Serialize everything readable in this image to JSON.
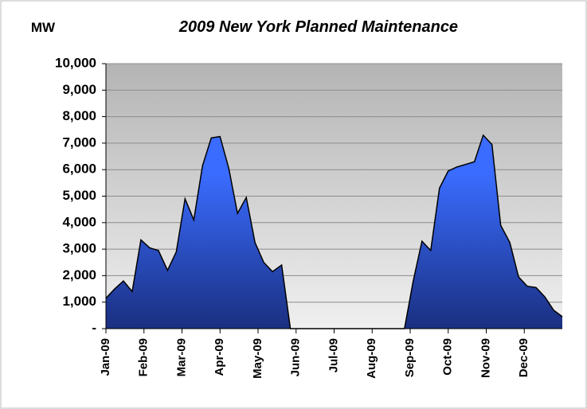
{
  "chart_data": {
    "type": "area",
    "title": "2009 New York Planned Maintenance",
    "y_label": "MW",
    "color": "#3366ff",
    "grid": true,
    "xlim": [
      0,
      12
    ],
    "xticks": [
      {
        "value": 0,
        "label": "Jan-09"
      },
      {
        "value": 1,
        "label": "Feb-09"
      },
      {
        "value": 2,
        "label": "Mar-09"
      },
      {
        "value": 3,
        "label": "Apr-09"
      },
      {
        "value": 4,
        "label": "May-09"
      },
      {
        "value": 5,
        "label": "Jun-09"
      },
      {
        "value": 6,
        "label": "Jul-09"
      },
      {
        "value": 7,
        "label": "Aug-09"
      },
      {
        "value": 8,
        "label": "Sep-09"
      },
      {
        "value": 9,
        "label": "Oct-09"
      },
      {
        "value": 10,
        "label": "Nov-09"
      },
      {
        "value": 11,
        "label": "Dec-09"
      }
    ],
    "ylim": [
      0,
      10000
    ],
    "yticks": [
      {
        "value": 0,
        "label": "-"
      },
      {
        "value": 1000,
        "label": "1,000"
      },
      {
        "value": 2000,
        "label": "2,000"
      },
      {
        "value": 3000,
        "label": "3,000"
      },
      {
        "value": 4000,
        "label": "4,000"
      },
      {
        "value": 5000,
        "label": "5,000"
      },
      {
        "value": 6000,
        "label": "6,000"
      },
      {
        "value": 7000,
        "label": "7,000"
      },
      {
        "value": 8000,
        "label": "8,000"
      },
      {
        "value": 9000,
        "label": "9,000"
      },
      {
        "value": 10000,
        "label": "10,000"
      }
    ],
    "x": [
      0,
      0.23,
      0.46,
      0.69,
      0.92,
      1.15,
      1.38,
      1.62,
      1.85,
      2.08,
      2.31,
      2.54,
      2.77,
      3.0,
      3.23,
      3.46,
      3.69,
      3.92,
      4.15,
      4.38,
      4.62,
      4.85,
      5.08,
      5.31,
      5.54,
      5.77,
      6.0,
      6.23,
      6.46,
      6.69,
      6.92,
      7.15,
      7.38,
      7.62,
      7.85,
      8.08,
      8.31,
      8.54,
      8.77,
      9.0,
      9.23,
      9.46,
      9.69,
      9.92,
      10.15,
      10.38,
      10.62,
      10.85,
      11.08,
      11.31,
      11.54,
      11.77,
      12.0
    ],
    "values": [
      1150,
      1500,
      1800,
      1400,
      3350,
      3050,
      2950,
      2200,
      2900,
      4900,
      4100,
      6150,
      7200,
      7250,
      6050,
      4350,
      4950,
      3250,
      2500,
      2150,
      2400,
      0,
      0,
      0,
      0,
      0,
      0,
      0,
      0,
      0,
      0,
      0,
      0,
      0,
      0,
      1800,
      3300,
      2950,
      5300,
      5950,
      6100,
      6200,
      6300,
      7300,
      6950,
      3900,
      3250,
      1950,
      1600,
      1550,
      1200,
      700,
      450
    ]
  }
}
